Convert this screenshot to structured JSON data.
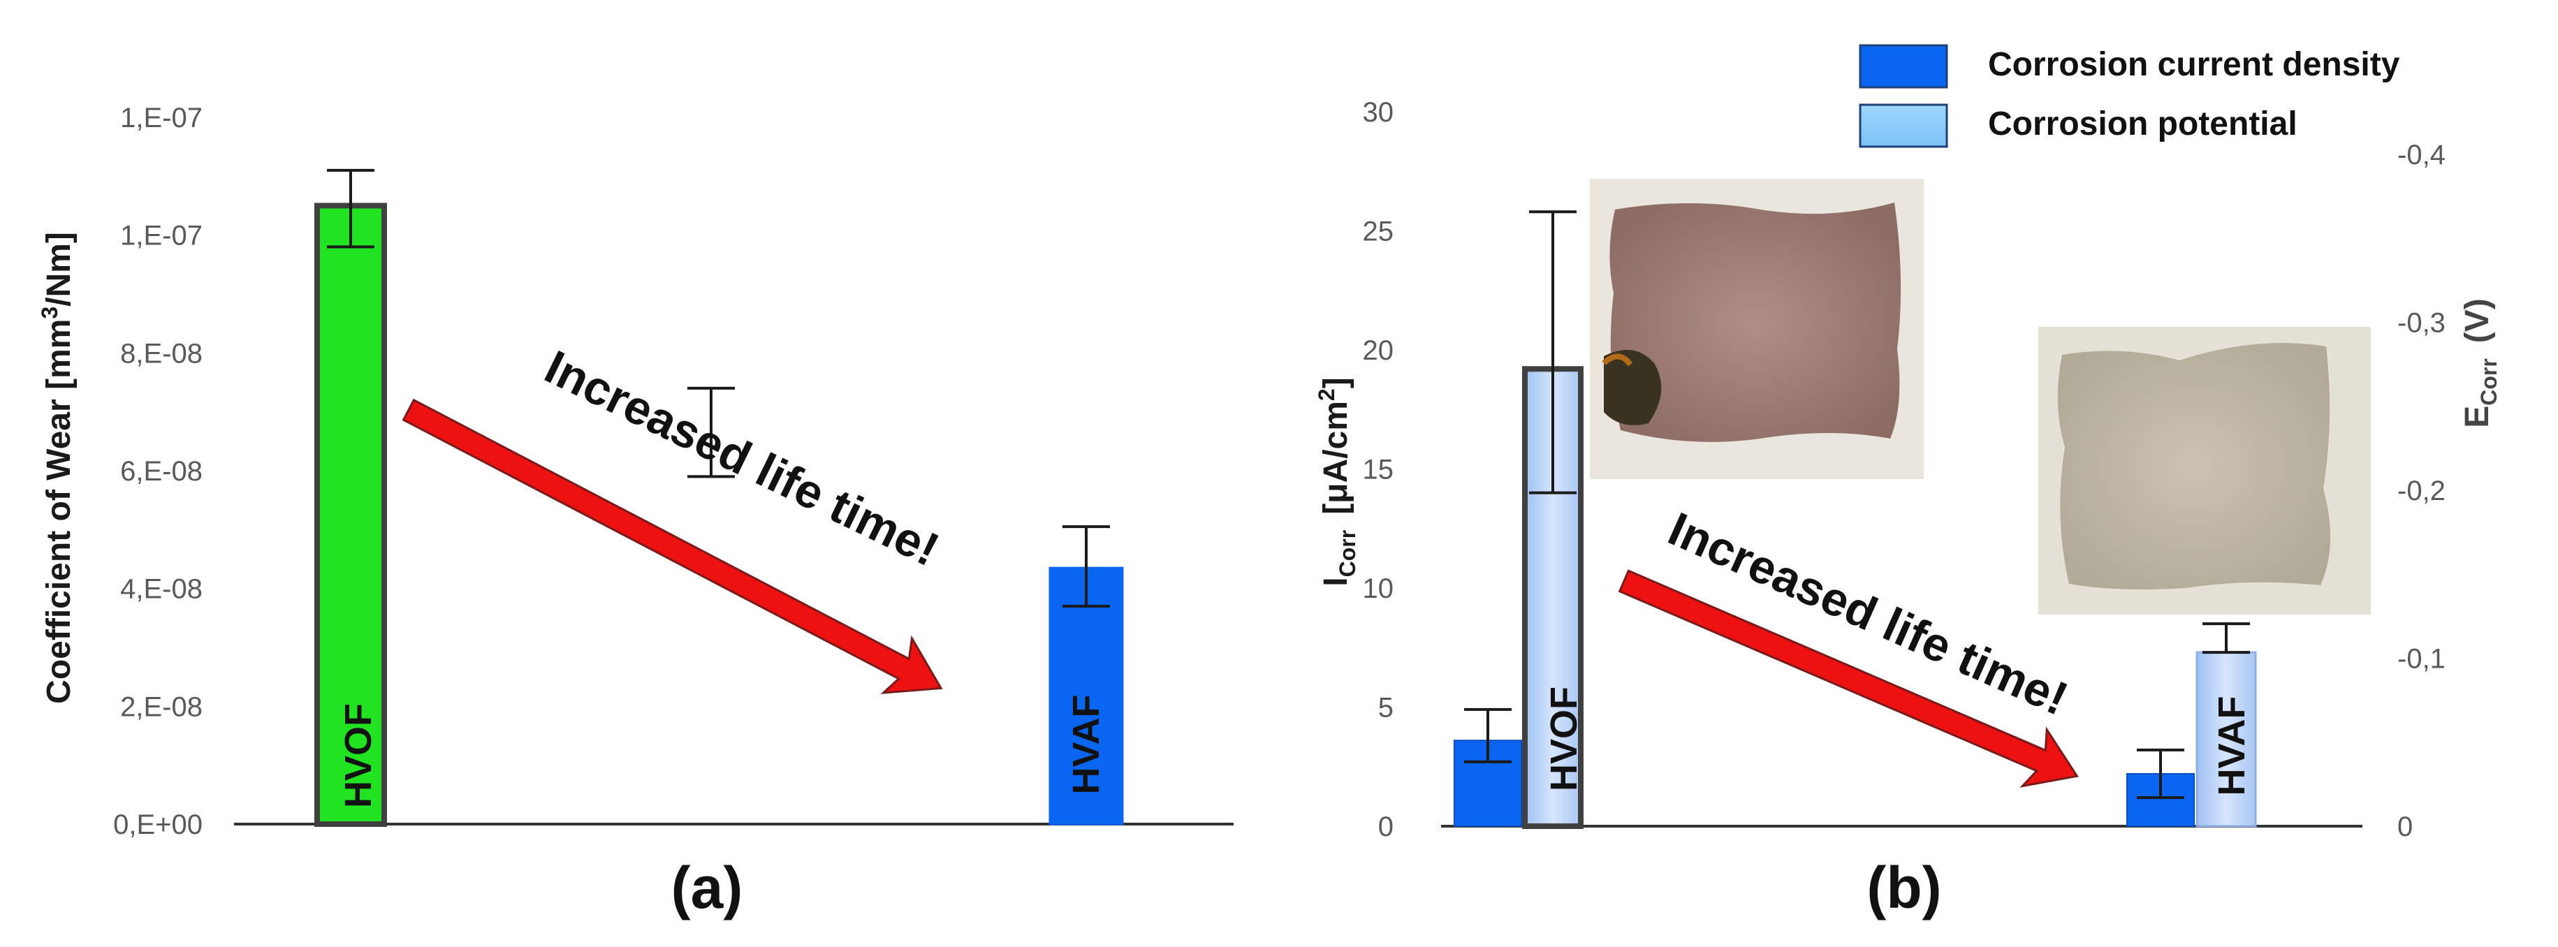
{
  "chart_data": [
    {
      "type": "bar",
      "panel_label": "(a)",
      "ylabel_pre": "Coefficient of Wear [mm",
      "ylabel_sup": "3",
      "ylabel_post": "/Nm]",
      "ylim": [
        0,
        1.2e-07
      ],
      "ytick_values": [
        0,
        2e-08,
        4e-08,
        6e-08,
        8e-08,
        1e-07,
        1.2e-07
      ],
      "ytick_labels": [
        "0,E+00",
        "2,E-08",
        "4,E-08",
        "6,E-08",
        "8,E-08",
        "1,E-07",
        "1,E-07"
      ],
      "bars": [
        {
          "label": "HVOF",
          "value": 1.05e-07,
          "err_low": 9.8e-08,
          "err_high": 1.11e-07,
          "color": "#22e322",
          "outline": "#404040"
        },
        {
          "label": "HVAF",
          "value": 4.35e-08,
          "err_low": 3.7e-08,
          "err_high": 5.05e-08,
          "color": "#0a66f0",
          "outline": "#0a66f0"
        }
      ],
      "stray_errorbar": {
        "low": 5.9e-08,
        "high": 7.4e-08
      },
      "annotation": "Increased life time!",
      "grid": false
    },
    {
      "type": "bar",
      "panel_label": "(b)",
      "ylabel_main": "I",
      "ylabel_sub": "Corr",
      "ylabel_unit": "[μA/cm",
      "ylabel_unit_sup": "2",
      "ylabel_unit_end": "]",
      "y2label_main": "E",
      "y2label_sub": "Corr",
      "y2label_unit": "(V)",
      "ylim": [
        0,
        30
      ],
      "ytick_values": [
        0,
        5,
        10,
        15,
        20,
        25,
        30
      ],
      "ytick_labels": [
        "0",
        "5",
        "10",
        "15",
        "20",
        "25",
        "30"
      ],
      "y2lim": [
        0,
        -0.4
      ],
      "y2tick_values": [
        0,
        -0.1,
        -0.2,
        -0.3,
        -0.4
      ],
      "y2tick_labels": [
        "0",
        "-0,1",
        "-0,2",
        "-0,3",
        "-0,4"
      ],
      "legend": [
        "Corrosion current density",
        "Corrosion potential"
      ],
      "legend_position": "top-right",
      "categories": [
        "HVOF",
        "HVAF"
      ],
      "series": [
        {
          "name": "Corrosion current density",
          "color": "#0a66f0",
          "values": [
            3.6,
            2.2
          ],
          "err_low": [
            2.7,
            1.2
          ],
          "err_high": [
            4.9,
            3.2
          ]
        },
        {
          "name": "Corrosion potential",
          "color": "#bcd3f6",
          "values": [
            19.2,
            7.3
          ],
          "err_low": [
            14.0,
            7.3
          ],
          "err_high": [
            25.8,
            8.5
          ]
        }
      ],
      "annotation": "Increased life time!",
      "grid": false
    }
  ]
}
